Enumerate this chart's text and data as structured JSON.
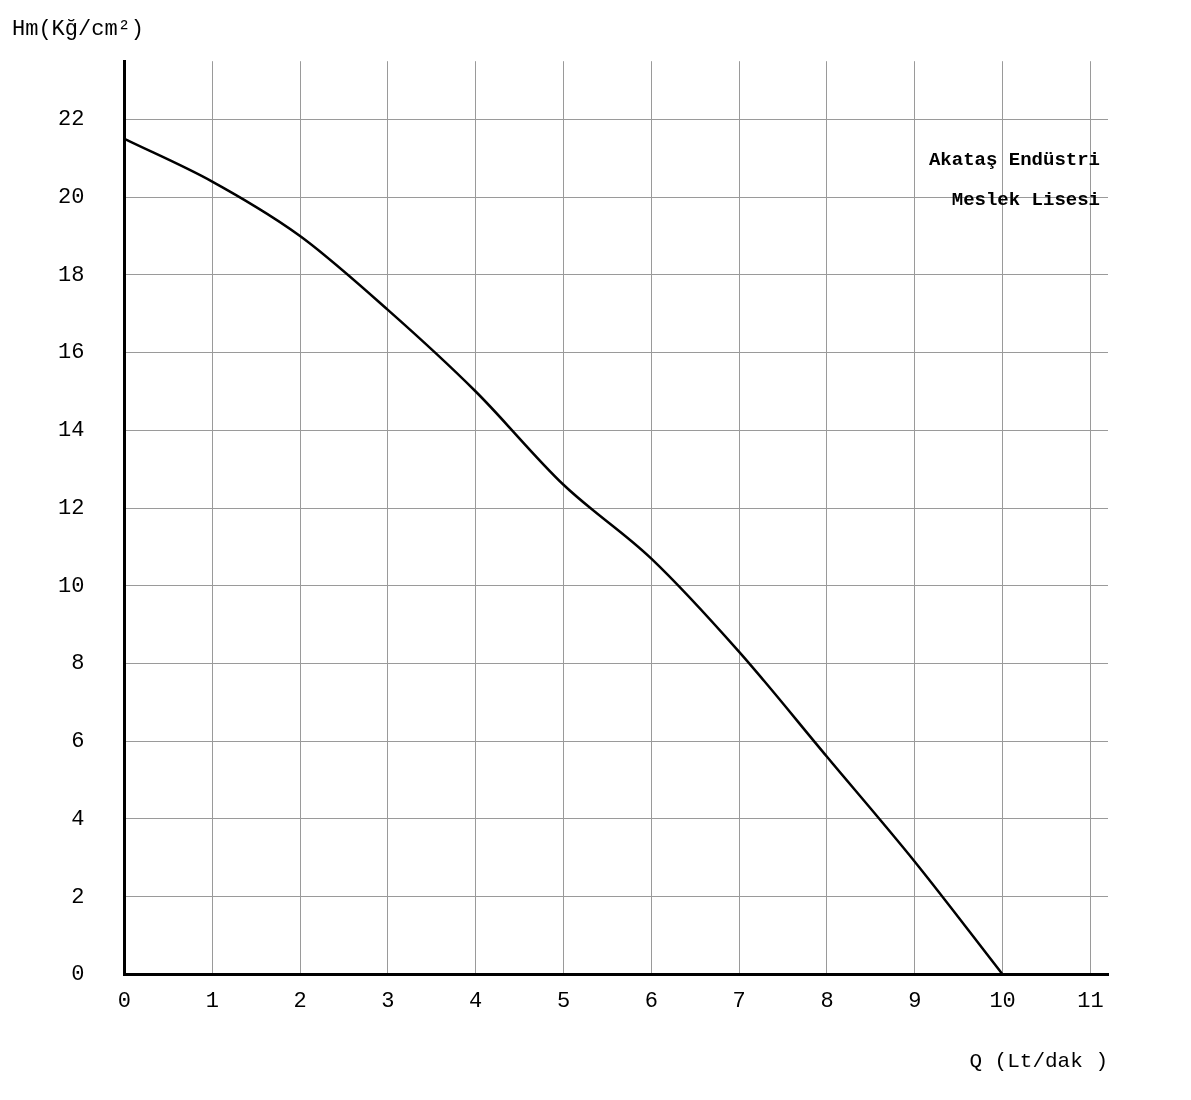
{
  "chart_data": {
    "type": "line",
    "xlabel": "Q (Lt/dak )",
    "ylabel": "Hm(Kğ/cm²)",
    "x": [
      0,
      1,
      2,
      3,
      4,
      5,
      6,
      7,
      8,
      9,
      10
    ],
    "series": [
      {
        "color": "#000000",
        "values": [
          21.5,
          20.4,
          19,
          17.1,
          15,
          12.6,
          10.7,
          8.3,
          5.6,
          2.9,
          0
        ]
      }
    ],
    "xlim": [
      0,
      11.2
    ],
    "xticks": [
      0,
      1,
      2,
      3,
      4,
      5,
      6,
      7,
      8,
      9,
      10,
      11
    ],
    "ylim": [
      0,
      23.5
    ],
    "yticks": [
      0,
      2,
      4,
      6,
      8,
      10,
      12,
      14,
      16,
      18,
      20,
      22
    ],
    "grid": true,
    "legend": false,
    "marker": "none",
    "line_style": "solid",
    "annotations": [
      "Akataş Endüstri\nMeslek Lisesi"
    ]
  }
}
